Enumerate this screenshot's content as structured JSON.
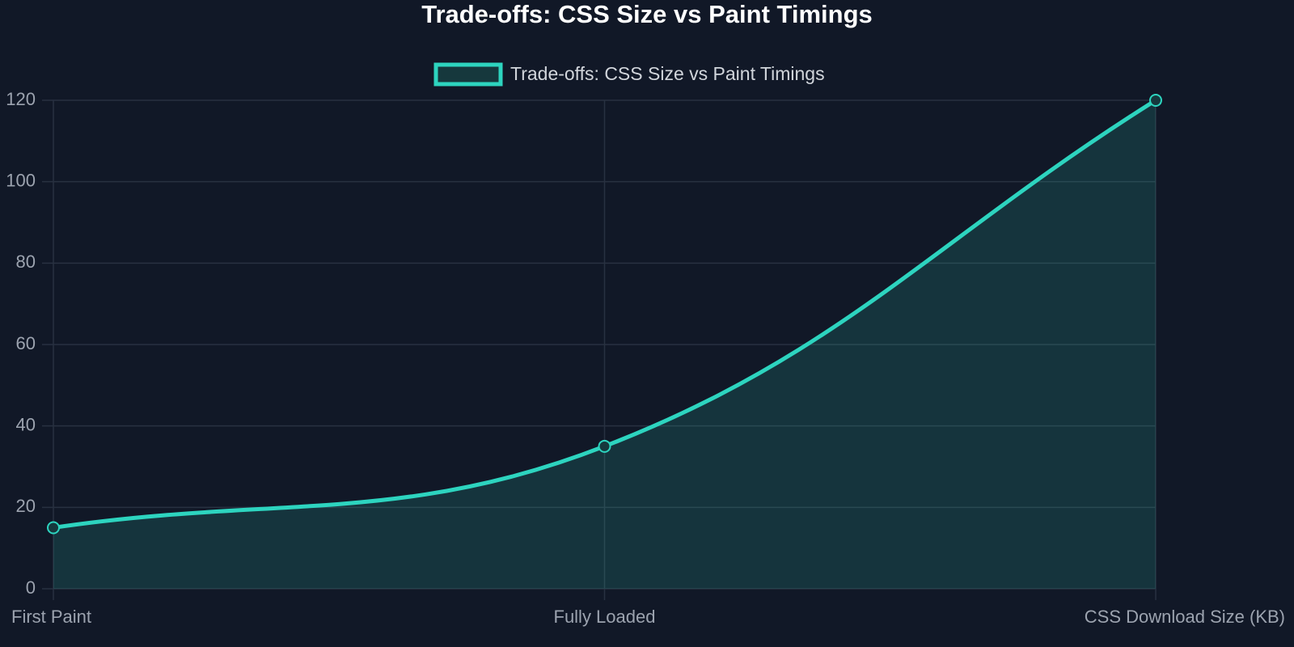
{
  "chart_data": {
    "type": "line",
    "title": "Trade-offs: CSS Size vs Paint Timings",
    "categories": [
      "First Paint",
      "Fully Loaded",
      "CSS Download Size (KB)"
    ],
    "series": [
      {
        "name": "Trade-offs: CSS Size vs Paint Timings",
        "color": "#2dd4bf",
        "values": [
          15,
          35,
          120
        ]
      }
    ],
    "fill": true,
    "ylim": [
      0,
      120
    ],
    "yticks": [
      0,
      20,
      40,
      60,
      80,
      100,
      120
    ],
    "grid": true,
    "legend": "top"
  }
}
